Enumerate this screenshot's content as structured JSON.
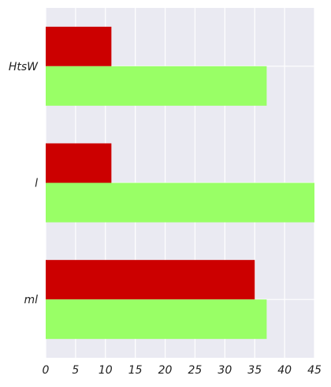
{
  "chart_data": {
    "type": "bar",
    "orientation": "horizontal",
    "categories": [
      "HtsW",
      "l",
      "ml"
    ],
    "series": [
      {
        "values": [
          11,
          11,
          35
        ],
        "color": "#cc0000"
      },
      {
        "values": [
          37,
          45,
          37
        ],
        "color": "#99ff66"
      }
    ],
    "xlim": [
      0,
      45
    ],
    "xticks": [
      0,
      5,
      10,
      15,
      20,
      25,
      30,
      35,
      40,
      45
    ],
    "grid": true,
    "background_color": "#eaeaf2",
    "grid_color": "#ffffff"
  }
}
